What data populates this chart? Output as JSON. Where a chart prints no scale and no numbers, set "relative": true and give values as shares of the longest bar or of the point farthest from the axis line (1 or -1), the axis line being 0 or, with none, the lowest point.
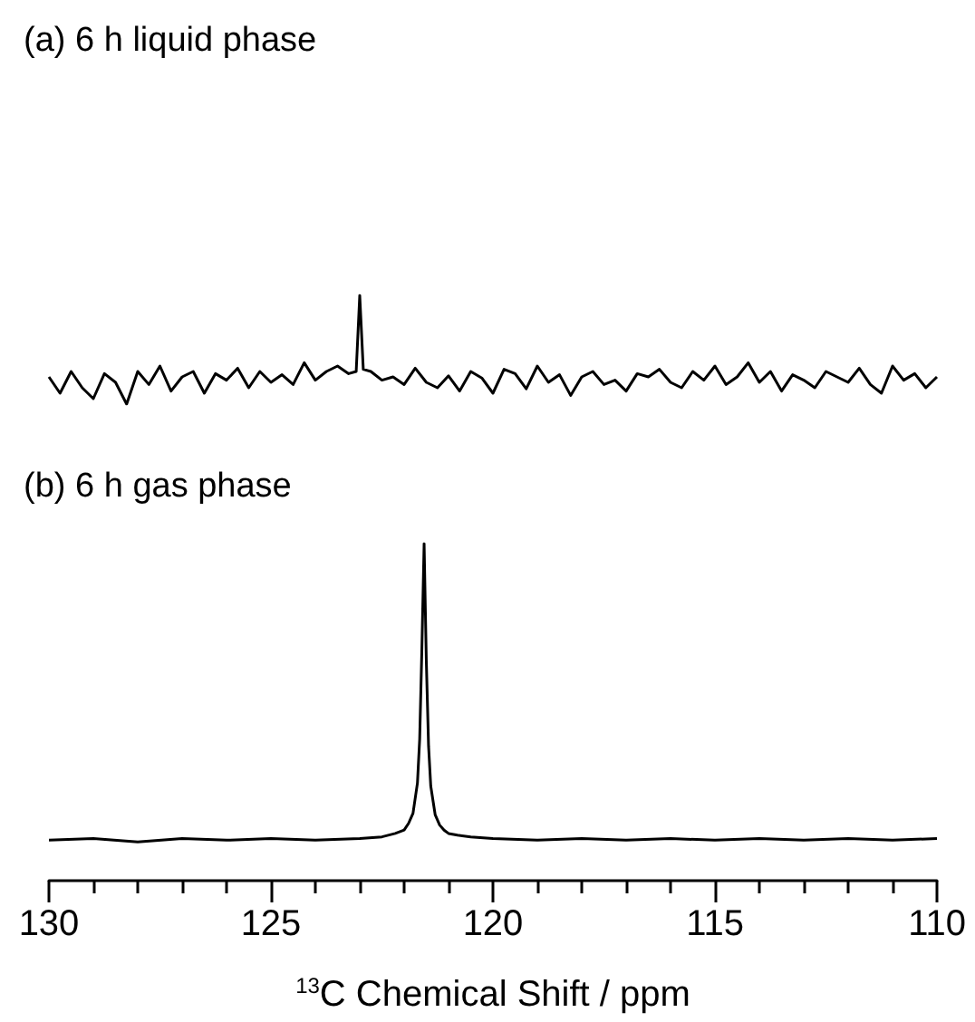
{
  "chart_data": [
    {
      "type": "line",
      "title": "(a) 6 h liquid phase",
      "relative": true,
      "tick_labels": false,
      "xlim": [
        130,
        110
      ],
      "x": [
        130,
        129.75,
        129.5,
        129.25,
        129,
        128.75,
        128.5,
        128.25,
        128,
        127.75,
        127.5,
        127.25,
        127,
        126.75,
        126.5,
        126.25,
        126,
        125.75,
        125.5,
        125.25,
        125,
        124.75,
        124.5,
        124.25,
        124,
        123.75,
        123.5,
        123.25,
        123.08,
        123,
        122.92,
        122.75,
        122.5,
        122.25,
        122,
        121.75,
        121.5,
        121.25,
        121,
        120.75,
        120.5,
        120.25,
        120,
        119.75,
        119.5,
        119.25,
        119,
        118.75,
        118.5,
        118.25,
        118,
        117.75,
        117.5,
        117.25,
        117,
        116.75,
        116.5,
        116.25,
        116,
        115.75,
        115.5,
        115.25,
        115,
        114.75,
        114.5,
        114.25,
        114,
        113.75,
        113.5,
        113.25,
        113,
        112.75,
        112.5,
        112.25,
        112,
        111.75,
        111.5,
        111.25,
        111,
        110.75,
        110.5,
        110.25,
        110
      ],
      "series": [
        {
          "color": "#000000",
          "values": [
            0.25,
            0.1,
            0.3,
            0.15,
            0.05,
            0.28,
            0.2,
            0.0,
            0.3,
            0.18,
            0.35,
            0.12,
            0.25,
            0.3,
            0.1,
            0.28,
            0.22,
            0.33,
            0.15,
            0.3,
            0.2,
            0.27,
            0.18,
            0.38,
            0.22,
            0.3,
            0.35,
            0.28,
            0.3,
            1,
            0.32,
            0.3,
            0.22,
            0.25,
            0.18,
            0.33,
            0.2,
            0.15,
            0.26,
            0.12,
            0.3,
            0.24,
            0.1,
            0.32,
            0.28,
            0.14,
            0.35,
            0.2,
            0.27,
            0.08,
            0.25,
            0.3,
            0.18,
            0.22,
            0.12,
            0.28,
            0.25,
            0.32,
            0.2,
            0.15,
            0.3,
            0.22,
            0.35,
            0.18,
            0.25,
            0.38,
            0.2,
            0.3,
            0.12,
            0.27,
            0.22,
            0.15,
            0.3,
            0.25,
            0.2,
            0.33,
            0.18,
            0.1,
            0.35,
            0.22,
            0.28,
            0.15,
            0.25
          ]
        }
      ]
    },
    {
      "type": "line",
      "title": "(b) 6 h gas phase",
      "relative": true,
      "tick_labels": "x",
      "xlabel": "$^{13}$C Chemical Shift / ppm",
      "xlim": [
        130,
        110
      ],
      "xticks": [
        130,
        125,
        120,
        115,
        110
      ],
      "x": [
        130,
        129,
        128,
        127,
        126,
        125,
        124,
        123,
        122.5,
        122.2,
        122,
        121.9,
        121.8,
        121.7,
        121.65,
        121.6,
        121.55,
        121.5,
        121.45,
        121.4,
        121.3,
        121.2,
        121.1,
        121,
        120.8,
        120.5,
        120,
        119,
        118,
        117,
        116,
        115,
        114,
        113,
        112,
        111,
        110
      ],
      "series": [
        {
          "color": "#000000",
          "values": [
            0.12,
            0.125,
            0.115,
            0.125,
            0.12,
            0.125,
            0.12,
            0.125,
            0.13,
            0.14,
            0.15,
            0.17,
            0.2,
            0.29,
            0.42,
            0.69,
            1,
            0.65,
            0.4,
            0.28,
            0.195,
            0.165,
            0.15,
            0.14,
            0.135,
            0.13,
            0.125,
            0.12,
            0.125,
            0.12,
            0.125,
            0.12,
            0.125,
            0.12,
            0.125,
            0.12,
            0.125
          ]
        }
      ]
    }
  ]
}
